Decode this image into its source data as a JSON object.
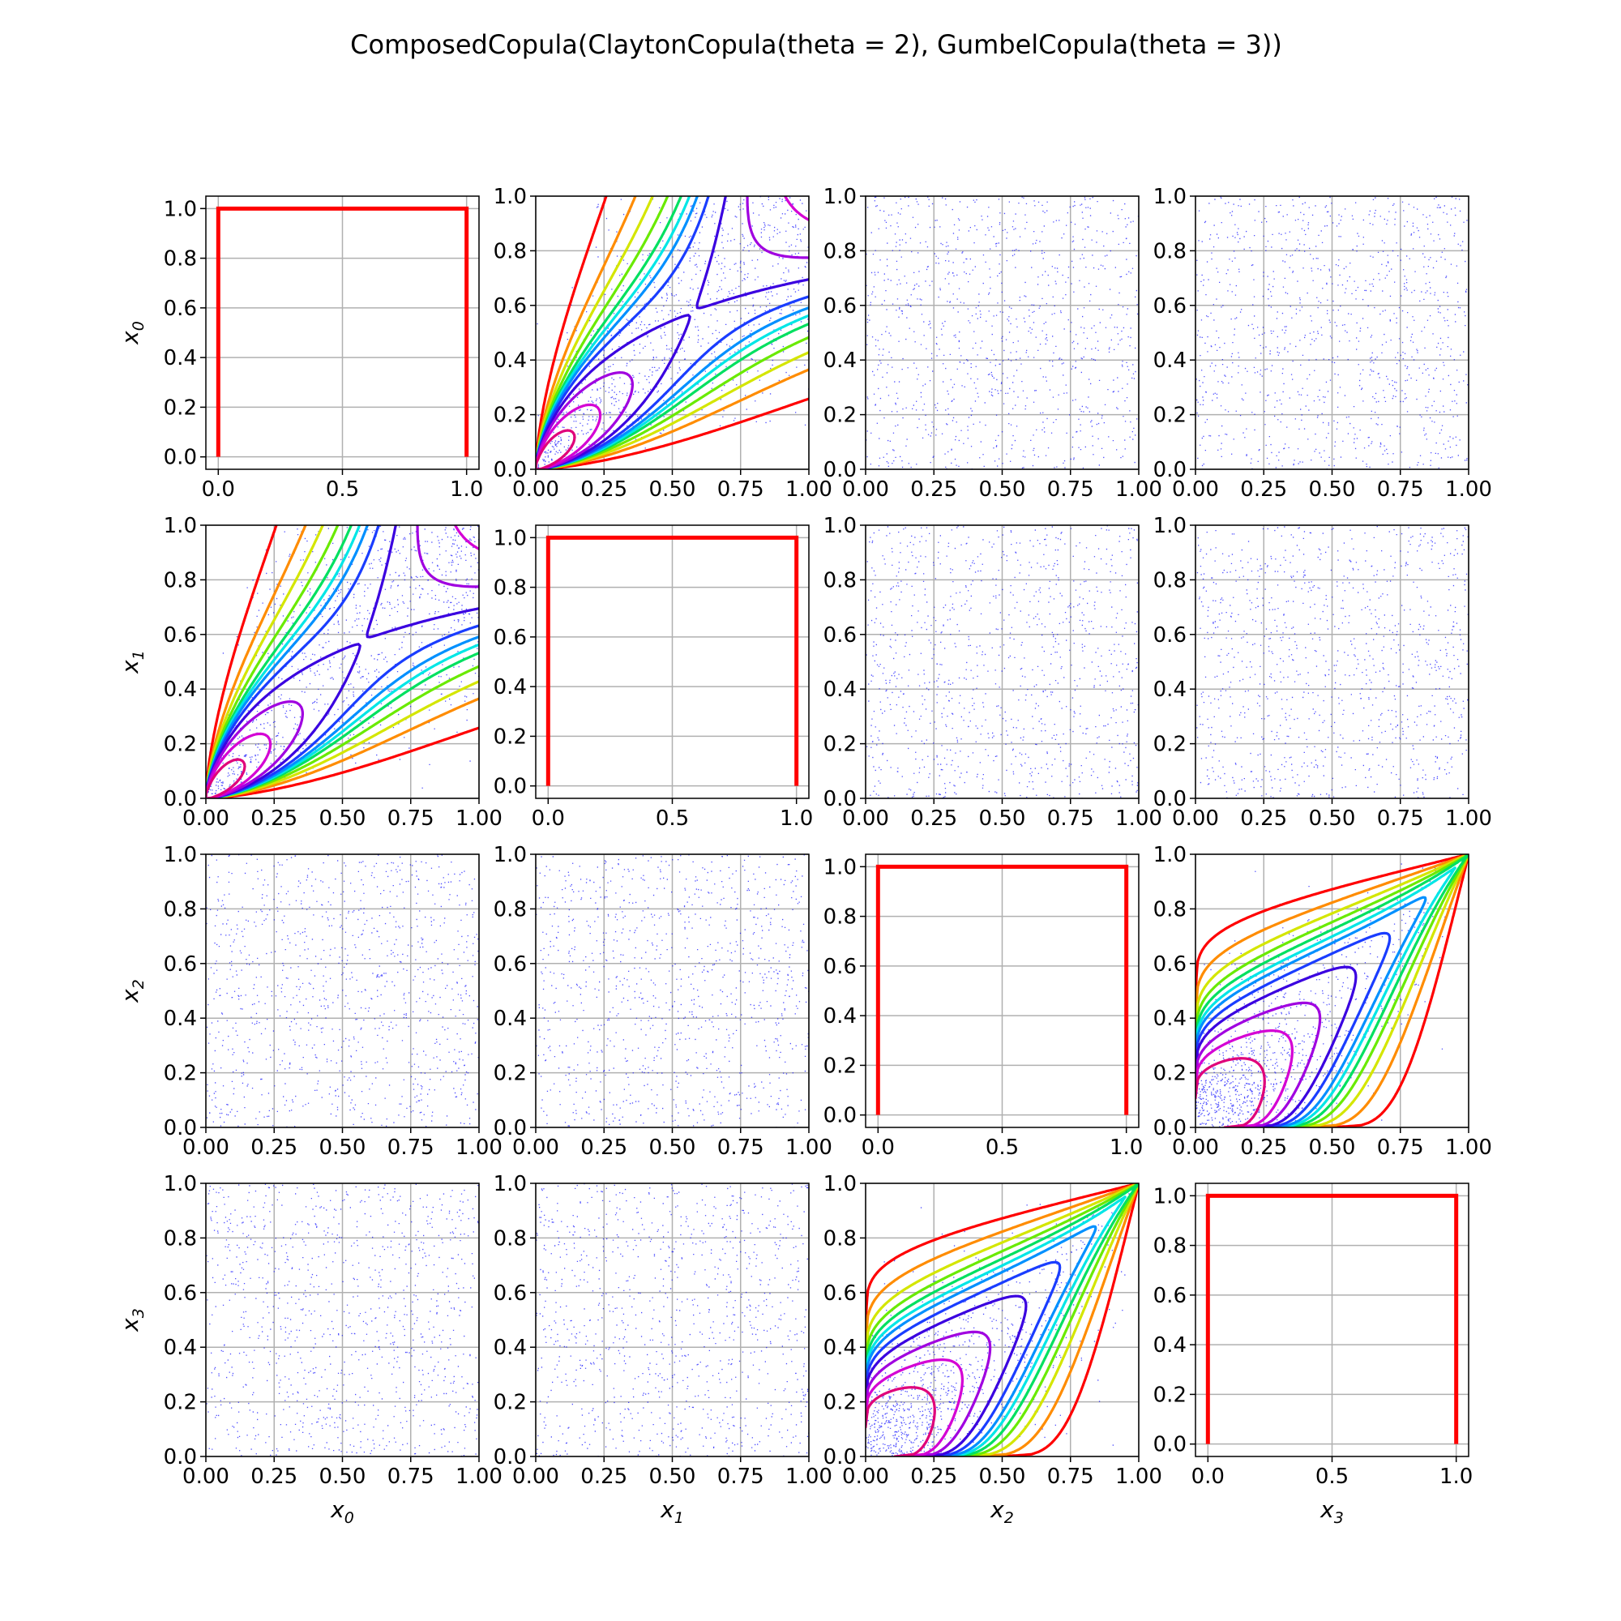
{
  "figure": {
    "title": "ComposedCopula(ClaytonCopula(theta = 2), GumbelCopula(theta = 3))",
    "variables": [
      "x0",
      "x1",
      "x2",
      "x3"
    ],
    "row_labels": [
      "x_0",
      "x_1",
      "x_2",
      "x_3"
    ],
    "col_labels": [
      "x_0",
      "x_1",
      "x_2",
      "x_3"
    ]
  },
  "colors": {
    "diagonal_line": "#ff0000",
    "sample_points": "#0000ff",
    "grid": "#b0b0b0",
    "contour_palette": [
      "#ff0000",
      "#ff8c00",
      "#d4e600",
      "#6aea00",
      "#00e060",
      "#00e6e6",
      "#0090ff",
      "#1a3dff",
      "#3a00e0",
      "#a000e0",
      "#d400d4",
      "#e0007a"
    ]
  },
  "chart_data": {
    "type": "scatter",
    "layout": "4x4 pairplot matrix",
    "grid": true,
    "diagonal_cells": {
      "type": "line",
      "description": "uniform marginal density",
      "x": [
        0.0,
        0.0,
        1.0,
        1.0
      ],
      "y": [
        0.0,
        1.0,
        1.0,
        0.0
      ],
      "xlim": [
        -0.05,
        1.05
      ],
      "ylim": [
        -0.05,
        1.05
      ],
      "xticks": [
        "0.0",
        "0.5",
        "1.0"
      ],
      "yticks": [
        "0.0",
        "0.2",
        "0.4",
        "0.6",
        "0.8",
        "1.0"
      ]
    },
    "off_diagonal_cells": {
      "xlim": [
        0,
        1
      ],
      "ylim": [
        0,
        1
      ],
      "xticks": [
        "0.00",
        "0.25",
        "0.50",
        "0.75",
        "1.00"
      ],
      "yticks": [
        "0.0",
        "0.2",
        "0.4",
        "0.6",
        "0.8",
        "1.0"
      ],
      "sample_points_per_cell": 1000
    },
    "pairs": [
      {
        "row": 0,
        "col": 1,
        "content": "clayton density contours + sample",
        "theta": 2
      },
      {
        "row": 1,
        "col": 0,
        "content": "clayton density contours + sample",
        "theta": 2
      },
      {
        "row": 2,
        "col": 3,
        "content": "gumbel density contours + sample",
        "theta": 3
      },
      {
        "row": 3,
        "col": 2,
        "content": "gumbel density contours + sample",
        "theta": 3
      },
      {
        "row": 0,
        "col": 2,
        "content": "independent sample"
      },
      {
        "row": 0,
        "col": 3,
        "content": "independent sample"
      },
      {
        "row": 1,
        "col": 2,
        "content": "independent sample"
      },
      {
        "row": 1,
        "col": 3,
        "content": "independent sample"
      },
      {
        "row": 2,
        "col": 0,
        "content": "independent sample"
      },
      {
        "row": 2,
        "col": 1,
        "content": "independent sample"
      },
      {
        "row": 3,
        "col": 0,
        "content": "independent sample"
      },
      {
        "row": 3,
        "col": 1,
        "content": "independent sample"
      }
    ],
    "clayton_contour_levels": [
      0.2,
      0.4,
      0.55,
      0.7,
      0.85,
      0.95,
      1.05,
      1.2,
      1.45,
      1.8,
      2.5,
      4.0
    ],
    "gumbel_contour_levels": [
      0.12,
      0.25,
      0.4,
      0.55,
      0.7,
      0.85,
      1.0,
      1.25,
      1.6,
      2.2,
      3.0,
      4.5
    ]
  }
}
